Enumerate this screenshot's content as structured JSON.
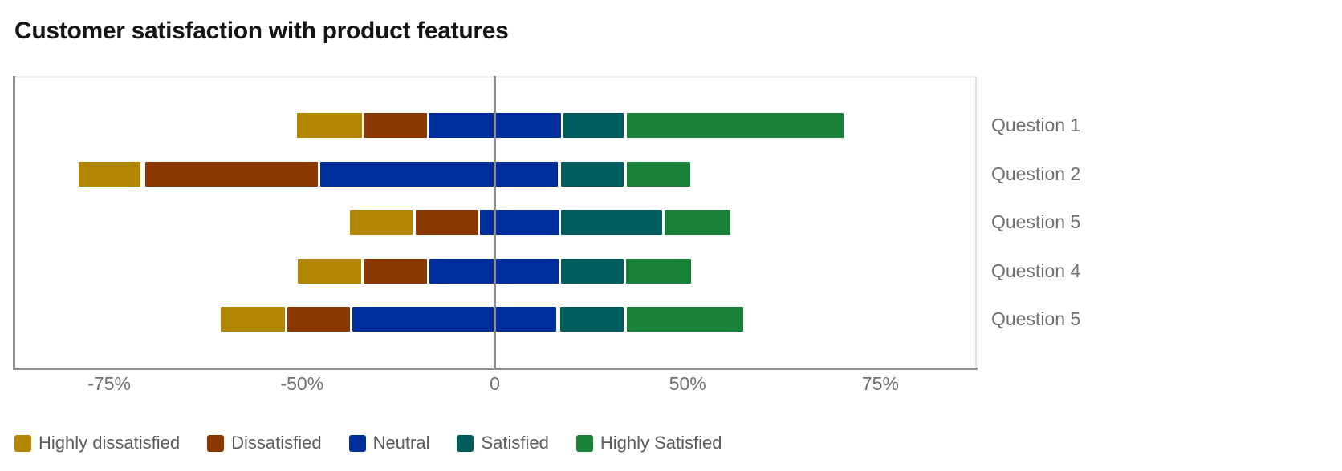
{
  "chart": {
    "title": "Customer satisfaction with product features"
  },
  "chart_data": {
    "type": "diverging_stacked_bar",
    "orientation": "horizontal",
    "title": "Customer satisfaction with product features",
    "x_axis": {
      "tick_labels": [
        "-75%",
        "-50%",
        "0",
        "50%",
        "75%"
      ],
      "tick_positions_pct": [
        10,
        30,
        50,
        70,
        90
      ],
      "zero_line_pct": 50,
      "grid": false
    },
    "series": [
      {
        "name": "Highly dissatisfied",
        "color": "#b28600"
      },
      {
        "name": "Dissatisfied",
        "color": "#8a3800"
      },
      {
        "name": "Neutral",
        "color": "#002d9c"
      },
      {
        "name": "Satisfied",
        "color": "#005d5d"
      },
      {
        "name": "Highly Satisfied",
        "color": "#198038"
      }
    ],
    "legend": {
      "position": "bottom",
      "items": [
        "Highly dissatisfied",
        "Dissatisfied",
        "Neutral",
        "Satisfied",
        "Highly Satisfied"
      ]
    },
    "rows": [
      {
        "label": "Question 1",
        "values_est_pct": {
          "Highly dissatisfied": 17,
          "Dissatisfied": 17,
          "Neutral": 35,
          "Satisfied": 16,
          "Highly Satisfied": 57
        },
        "segments_axis_pct": [
          [
            29.5,
            36.2
          ],
          [
            36.4,
            43.0
          ],
          [
            43.1,
            56.9
          ],
          [
            57.1,
            63.4
          ],
          [
            63.7,
            86.2
          ]
        ]
      },
      {
        "label": "Question 2",
        "values_est_pct": {
          "Highly dissatisfied": 16,
          "Dissatisfied": 45,
          "Neutral": 62,
          "Satisfied": 17,
          "Highly Satisfied": 17
        },
        "segments_axis_pct": [
          [
            6.8,
            13.2
          ],
          [
            13.7,
            31.6
          ],
          [
            31.9,
            56.5
          ],
          [
            56.9,
            63.4
          ],
          [
            63.7,
            70.3
          ]
        ]
      },
      {
        "label": "Question 5",
        "values_est_pct": {
          "Highly dissatisfied": 17,
          "Dissatisfied": 16,
          "Neutral": 21,
          "Satisfied": 26,
          "Highly Satisfied": 17
        },
        "segments_axis_pct": [
          [
            35.0,
            41.5
          ],
          [
            41.8,
            48.3
          ],
          [
            48.5,
            56.7
          ],
          [
            56.9,
            67.4
          ],
          [
            67.6,
            74.4
          ]
        ]
      },
      {
        "label": "Question 4",
        "values_est_pct": {
          "Highly dissatisfied": 17,
          "Dissatisfied": 17,
          "Neutral": 34,
          "Satisfied": 16,
          "Highly Satisfied": 17
        },
        "segments_axis_pct": [
          [
            29.6,
            36.1
          ],
          [
            36.4,
            43.0
          ],
          [
            43.2,
            56.6
          ],
          [
            56.9,
            63.4
          ],
          [
            63.6,
            70.4
          ]
        ]
      },
      {
        "label": "Question 5",
        "values_est_pct": {
          "Highly dissatisfied": 17,
          "Dissatisfied": 16,
          "Neutral": 53,
          "Satisfied": 17,
          "Highly Satisfied": 30
        },
        "segments_axis_pct": [
          [
            21.6,
            28.2
          ],
          [
            28.5,
            35.0
          ],
          [
            35.2,
            56.4
          ],
          [
            56.8,
            63.4
          ],
          [
            63.7,
            75.8
          ]
        ]
      }
    ]
  },
  "colors": {
    "axis_line": "#8d8d8d",
    "zero_line": "#8d8d8d",
    "plot_border_light": "#e0e0e0",
    "tick_text": "#6f6f6f",
    "category_text": "#6f6f6f",
    "legend_text": "#5c5c5c",
    "title_text": "#141414"
  }
}
